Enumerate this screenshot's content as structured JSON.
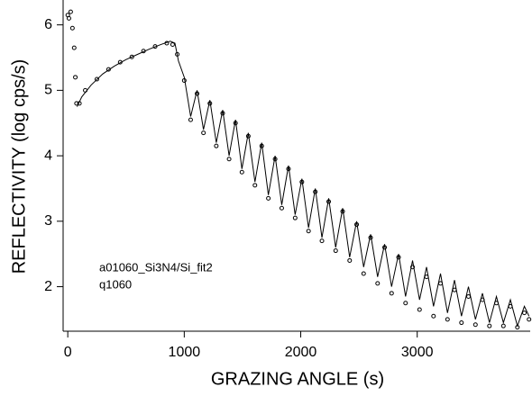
{
  "chart_data": {
    "type": "scatter",
    "xlabel": "GRAZING ANGLE (s)",
    "ylabel": "REFLECTIVITY (log cps/s)",
    "annotations": [
      "a01060_Si3N4/Si_fit2",
      "q1060"
    ],
    "xlim": [
      -40,
      3970
    ],
    "xticks": [
      0,
      1000,
      2000,
      3000
    ],
    "ylim": [
      1.32,
      6.38
    ],
    "yticks": [
      2,
      3,
      4,
      5,
      6
    ],
    "series": [
      {
        "mode": "markers",
        "color": "#000000",
        "x": [
          0,
          10,
          25,
          40,
          55,
          65,
          75,
          100,
          150,
          250,
          350,
          450,
          550,
          650,
          750,
          850,
          900,
          940,
          1000,
          1055,
          1110,
          1165,
          1220,
          1275,
          1330,
          1385,
          1440,
          1495,
          1550,
          1607,
          1665,
          1722,
          1780,
          1837,
          1895,
          1952,
          2010,
          2067,
          2125,
          2182,
          2240,
          2300,
          2360,
          2420,
          2480,
          2540,
          2600,
          2660,
          2720,
          2780,
          2840,
          2900,
          2960,
          3020,
          3080,
          3140,
          3200,
          3260,
          3320,
          3380,
          3440,
          3500,
          3560,
          3620,
          3680,
          3740,
          3800,
          3860,
          3920,
          3960
        ],
        "values": [
          6.15,
          6.1,
          6.2,
          5.95,
          5.65,
          5.2,
          4.8,
          4.8,
          5.0,
          5.17,
          5.32,
          5.43,
          5.51,
          5.6,
          5.67,
          5.72,
          5.7,
          5.55,
          5.15,
          4.55,
          4.95,
          4.35,
          4.8,
          4.15,
          4.65,
          3.95,
          4.5,
          3.75,
          4.3,
          3.55,
          4.15,
          3.35,
          3.95,
          3.2,
          3.8,
          3.05,
          3.6,
          2.85,
          3.45,
          2.7,
          3.3,
          2.55,
          3.15,
          2.4,
          2.95,
          2.2,
          2.75,
          2.05,
          2.6,
          1.9,
          2.45,
          1.75,
          2.3,
          1.65,
          2.15,
          1.55,
          2.05,
          1.5,
          1.95,
          1.45,
          1.85,
          1.42,
          1.8,
          1.4,
          1.75,
          1.4,
          1.7,
          1.38,
          1.6,
          1.5
        ]
      },
      {
        "mode": "line",
        "color": "#000000",
        "x": [
          80,
          120,
          200,
          300,
          400,
          500,
          600,
          700,
          800,
          880,
          920,
          950,
          1000,
          1055,
          1110,
          1165,
          1220,
          1275,
          1330,
          1385,
          1440,
          1495,
          1550,
          1607,
          1665,
          1722,
          1780,
          1837,
          1895,
          1952,
          2010,
          2067,
          2125,
          2182,
          2240,
          2300,
          2360,
          2420,
          2480,
          2540,
          2600,
          2660,
          2720,
          2780,
          2840,
          2900,
          2960,
          3020,
          3080,
          3140,
          3200,
          3260,
          3320,
          3380,
          3440,
          3500,
          3560,
          3620,
          3680,
          3740,
          3800,
          3860,
          3920,
          3960
        ],
        "values": [
          4.75,
          4.9,
          5.08,
          5.25,
          5.37,
          5.47,
          5.55,
          5.63,
          5.7,
          5.75,
          5.72,
          5.45,
          5.2,
          4.6,
          5.0,
          4.4,
          4.85,
          4.2,
          4.7,
          4.0,
          4.55,
          3.8,
          4.35,
          3.6,
          4.2,
          3.4,
          4.0,
          3.25,
          3.85,
          3.1,
          3.65,
          2.9,
          3.5,
          2.75,
          3.35,
          2.6,
          3.2,
          2.45,
          3.0,
          2.3,
          2.8,
          2.15,
          2.65,
          2.0,
          2.5,
          1.85,
          2.4,
          1.8,
          2.3,
          1.7,
          2.2,
          1.6,
          2.1,
          1.55,
          2.0,
          1.5,
          1.9,
          1.45,
          1.85,
          1.45,
          1.8,
          1.4,
          1.7,
          1.55
        ]
      }
    ]
  }
}
